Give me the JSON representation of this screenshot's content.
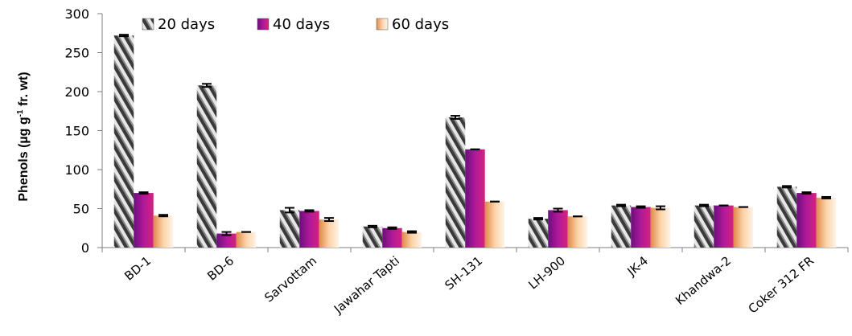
{
  "chart_data": {
    "type": "bar",
    "ylabel_main": "Phenols (µg g",
    "ylabel_sup": "-1",
    "ylabel_tail": " fr. wt)",
    "ylim": [
      0,
      300
    ],
    "yticks": [
      "0",
      "50",
      "100",
      "150",
      "200",
      "250",
      "300"
    ],
    "categories": [
      "BD-1",
      "BD-6",
      "Sarvottam",
      "Jawahar Tapti",
      "SH-131",
      "LH-900",
      "JK-4",
      "Khandwa-2",
      "Coker 312 FR"
    ],
    "legend_position": "top",
    "series": [
      {
        "name": "20 days",
        "color": "#9a9a9a",
        "pattern": "diagonal-gray",
        "values": [
          272,
          208,
          48,
          27,
          167,
          37,
          54,
          54,
          78
        ],
        "errors": [
          1,
          2,
          3,
          1,
          2,
          1,
          1,
          1,
          1
        ]
      },
      {
        "name": "40 days",
        "color": "#8a1a8f",
        "pattern": "purple-gradient",
        "values": [
          70,
          18,
          47,
          25,
          126,
          48,
          52,
          54,
          70
        ],
        "errors": [
          1,
          2,
          1,
          1,
          0,
          2,
          1,
          0,
          1
        ]
      },
      {
        "name": "60 days",
        "color": "#f5b07a",
        "pattern": "peach-gradient",
        "values": [
          41,
          20,
          36,
          20,
          59,
          40,
          51,
          52,
          64
        ],
        "errors": [
          1,
          0,
          2,
          1,
          0,
          0,
          2,
          0,
          1
        ]
      }
    ]
  }
}
